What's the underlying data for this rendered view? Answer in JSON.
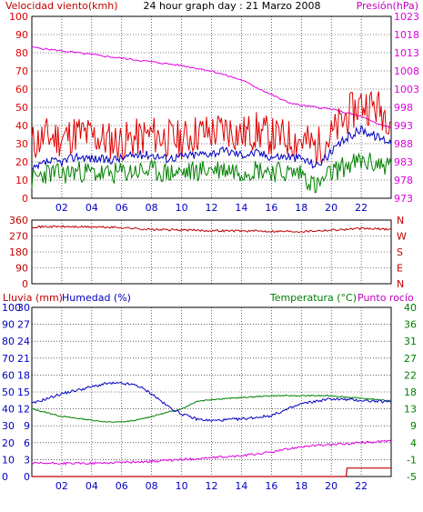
{
  "header": {
    "left": "Velocidad viento(kmh)",
    "center": "24 hour graph day : 21 Marzo 2008",
    "right": "Presión(hPa)"
  },
  "colors": {
    "wind": "#e00000",
    "wind_avg": "#008000",
    "wind_blue": "#0000c0",
    "pressure": "#e000e0",
    "direction": "#c00000",
    "rain": "#c00000",
    "humidity": "#0000c0",
    "temperature": "#008000",
    "dewpoint": "#e000e0",
    "grid": "#000000",
    "label_blue": "#0000c0",
    "label_red": "#c00000",
    "label_green": "#008000",
    "label_magenta": "#c000c0"
  },
  "chart_data": [
    {
      "type": "line",
      "name": "wind-pressure",
      "x_ticks": [
        "02",
        "04",
        "06",
        "08",
        "10",
        "12",
        "14",
        "16",
        "18",
        "20",
        "22"
      ],
      "y_left_ticks": [
        "0",
        "10",
        "20",
        "30",
        "40",
        "50",
        "60",
        "70",
        "80",
        "90",
        "100"
      ],
      "y_right_ticks": [
        "973",
        "978",
        "983",
        "988",
        "993",
        "998",
        "1003",
        "1008",
        "1013",
        "1018",
        "1023"
      ],
      "left_label": "Velocidad viento(kmh)",
      "right_label": "Presión(hPa)",
      "ylim_left": [
        0,
        100
      ],
      "ylim_right": [
        973,
        1023
      ],
      "series": [
        {
          "name": "Velocidad viento(kmh)",
          "role": "gust",
          "x": [
            0,
            1,
            2,
            3,
            4,
            5,
            6,
            7,
            8,
            9,
            10,
            11,
            12,
            13,
            14,
            15,
            16,
            17,
            18,
            19,
            20,
            21,
            22,
            23,
            24
          ],
          "values": [
            30,
            34,
            33,
            36,
            34,
            32,
            31,
            33,
            35,
            33,
            32,
            36,
            36,
            38,
            35,
            37,
            34,
            33,
            32,
            28,
            34,
            45,
            52,
            50,
            45
          ]
        },
        {
          "name": "",
          "role": "average",
          "x": [
            0,
            1,
            2,
            3,
            4,
            5,
            6,
            7,
            8,
            9,
            10,
            11,
            12,
            13,
            14,
            15,
            16,
            17,
            18,
            19,
            20,
            21,
            22,
            23,
            24
          ],
          "values": [
            10,
            14,
            13,
            15,
            14,
            13,
            14,
            15,
            15,
            14,
            14,
            15,
            16,
            16,
            15,
            16,
            15,
            14,
            14,
            6,
            14,
            18,
            20,
            19,
            18
          ]
        },
        {
          "name": "",
          "role": "mean",
          "x": [
            0,
            1,
            2,
            3,
            4,
            5,
            6,
            7,
            8,
            9,
            10,
            11,
            12,
            13,
            14,
            15,
            16,
            17,
            18,
            19,
            20,
            21,
            22,
            23,
            24
          ],
          "values": [
            15,
            20,
            20,
            23,
            22,
            21,
            22,
            24,
            24,
            22,
            23,
            24,
            25,
            26,
            24,
            25,
            23,
            23,
            22,
            18,
            25,
            33,
            38,
            34,
            31
          ]
        },
        {
          "name": "Presión(hPa)",
          "role": "pressure",
          "x": [
            0,
            2,
            4,
            6,
            8,
            10,
            12,
            14,
            16,
            17,
            18,
            20,
            22,
            23,
            24
          ],
          "values": [
            1014.5,
            1013.5,
            1012.5,
            1011.5,
            1010.5,
            1009.5,
            1008,
            1005.5,
            1001.5,
            999.5,
            998.5,
            997.5,
            995.5,
            993.5,
            992.5
          ]
        }
      ]
    },
    {
      "type": "line",
      "name": "wind-direction",
      "x_ticks": [
        "02",
        "04",
        "06",
        "08",
        "10",
        "12",
        "14",
        "16",
        "18",
        "20",
        "22"
      ],
      "y_left_ticks": [
        "0",
        "90",
        "180",
        "270",
        "360"
      ],
      "y_right_ticks": [
        "N",
        "E",
        "S",
        "W",
        "N"
      ],
      "ylim": [
        0,
        360
      ],
      "series": [
        {
          "name": "",
          "role": "direction",
          "x": [
            0,
            2,
            4,
            6,
            8,
            10,
            12,
            14,
            16,
            18,
            20,
            22,
            24
          ],
          "values": [
            322,
            323,
            321,
            318,
            306,
            304,
            300,
            299,
            297,
            296,
            304,
            312,
            308
          ]
        }
      ]
    },
    {
      "type": "line",
      "name": "rain-humidity-temperature",
      "x_ticks": [
        "02",
        "04",
        "06",
        "08",
        "10",
        "12",
        "14",
        "16",
        "18",
        "20",
        "22"
      ],
      "y_far_left_ticks": [
        "0",
        "10",
        "20",
        "30",
        "40",
        "50",
        "60",
        "70",
        "80",
        "90",
        "100"
      ],
      "y_left_ticks": [
        "0",
        "3",
        "6",
        "9",
        "12",
        "15",
        "18",
        "21",
        "24",
        "27",
        "30"
      ],
      "y_right_ticks": [
        "-5",
        "-1",
        "4",
        "9",
        "13",
        "18",
        "22",
        "27",
        "31",
        "36",
        "40"
      ],
      "labels": {
        "rain": "Lluvia (mm)",
        "humidity": "Humedad (%)",
        "temperature": "Temperatura (°C)",
        "dewpoint": "Punto rocío"
      },
      "ylim_humidity": [
        0,
        100
      ],
      "ylim_rain": [
        0,
        30
      ],
      "ylim_temperature": [
        -5,
        40
      ],
      "series": [
        {
          "name": "Lluvia (mm)",
          "role": "rain",
          "x": [
            0,
            21,
            21.05,
            24
          ],
          "values": [
            0,
            0,
            1.5,
            1.5
          ]
        },
        {
          "name": "Humedad (%)",
          "role": "humidity",
          "x": [
            0,
            2,
            4,
            5,
            6,
            7,
            8,
            9,
            10,
            11,
            12,
            14,
            16,
            18,
            20,
            22,
            24
          ],
          "values": [
            43,
            49,
            53,
            55,
            55,
            54,
            49,
            42,
            37,
            34,
            33,
            34,
            36,
            43,
            46,
            45,
            44
          ]
        },
        {
          "name": "Temperatura (°C)",
          "role": "temperature",
          "x": [
            0,
            2,
            4,
            5,
            6,
            7,
            8,
            9,
            10,
            11,
            12,
            14,
            16,
            18,
            20,
            22,
            24
          ],
          "values": [
            13,
            11,
            10,
            9.5,
            9.5,
            10,
            11,
            12,
            13,
            15,
            15.5,
            16,
            16.5,
            16.5,
            16.5,
            15.8,
            15.2
          ]
        },
        {
          "name": "Punto rocío",
          "role": "dewpoint",
          "x": [
            0,
            2,
            4,
            6,
            8,
            10,
            12,
            14,
            16,
            18,
            20,
            22,
            24
          ],
          "values": [
            -1.5,
            -1.5,
            -1.5,
            -1.2,
            -1,
            -0.5,
            0,
            0.5,
            1.5,
            3,
            3.5,
            4,
            4.5
          ]
        }
      ]
    }
  ]
}
